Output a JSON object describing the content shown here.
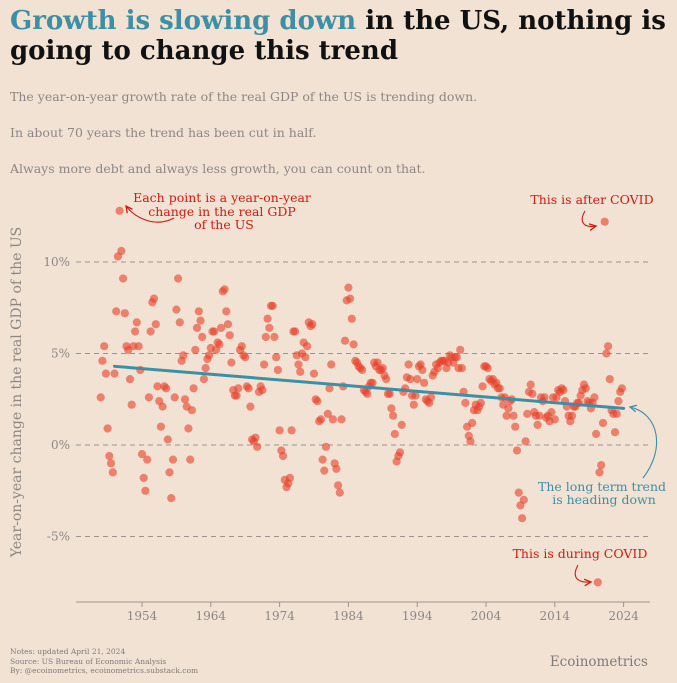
{
  "title": {
    "highlight": "Growth is slowing down",
    "rest": " in the US, nothing is going to change this trend"
  },
  "subtitles": [
    "The year-on-year growth rate of the real GDP of the US is trending down.",
    "In about 70 years the trend has been cut in half.",
    "Always more debt and always less growth, you can count on that."
  ],
  "notes": [
    "Notes: updated April 21, 2024",
    "Source: US Bureau of Economic Analysis",
    "By: @ecoinometrics, ecoinometrics.substack.com"
  ],
  "brand": "Ecoinometrics",
  "colors": {
    "background": "#f2e2d3",
    "points": "#e8402a",
    "trend": "#3d8fa6",
    "annotation_red": "#cc1a14",
    "annotation_blue": "#3d8fa6"
  },
  "annotations": {
    "points": [
      "Each point is a year-on-year",
      "change in the real GDP",
      "of the US"
    ],
    "after_covid": "This is after COVID",
    "trend": [
      "The long term trend",
      "is heading down"
    ],
    "during_covid": "This is during COVID"
  },
  "chart_data": {
    "type": "scatter",
    "ylabel": "Year-on-year change in the real GDP of the US",
    "xlabel": "",
    "x_ticks": [
      "1954",
      "1964",
      "1974",
      "1984",
      "1994",
      "2004",
      "2014",
      "2024"
    ],
    "y_ticks": [
      "10%",
      "5%",
      "0%",
      "-5%"
    ],
    "xlim": [
      1947,
      2026
    ],
    "ylim": [
      -8.2,
      11.5
    ],
    "grid": "horizontal dashed at -5, 0, 5, 10",
    "trend_line": {
      "x": [
        1950,
        2024
      ],
      "y": [
        4.3,
        2.0
      ]
    },
    "points": [
      [
        1948.0,
        2.6
      ],
      [
        1948.25,
        4.6
      ],
      [
        1948.5,
        5.4
      ],
      [
        1948.75,
        3.9
      ],
      [
        1949.0,
        0.9
      ],
      [
        1949.25,
        -0.6
      ],
      [
        1949.5,
        -1.0
      ],
      [
        1949.75,
        -1.5
      ],
      [
        1950.0,
        3.9
      ],
      [
        1950.25,
        7.3
      ],
      [
        1950.5,
        10.3
      ],
      [
        1950.75,
        12.8
      ],
      [
        1951.0,
        10.6
      ],
      [
        1951.25,
        9.1
      ],
      [
        1951.5,
        7.2
      ],
      [
        1951.75,
        5.4
      ],
      [
        1952.0,
        5.2
      ],
      [
        1952.25,
        3.6
      ],
      [
        1952.5,
        2.2
      ],
      [
        1952.75,
        5.4
      ],
      [
        1953.0,
        6.2
      ],
      [
        1953.25,
        6.7
      ],
      [
        1953.5,
        5.4
      ],
      [
        1953.75,
        4.1
      ],
      [
        1954.0,
        -0.5
      ],
      [
        1954.25,
        -1.8
      ],
      [
        1954.5,
        -2.5
      ],
      [
        1954.75,
        -0.8
      ],
      [
        1955.0,
        2.6
      ],
      [
        1955.25,
        6.2
      ],
      [
        1955.5,
        7.8
      ],
      [
        1955.75,
        8.0
      ],
      [
        1956.0,
        6.6
      ],
      [
        1956.25,
        3.2
      ],
      [
        1956.5,
        2.4
      ],
      [
        1956.75,
        1.0
      ],
      [
        1957.0,
        2.1
      ],
      [
        1957.25,
        3.2
      ],
      [
        1957.5,
        3.1
      ],
      [
        1957.75,
        0.3
      ],
      [
        1958.0,
        -1.5
      ],
      [
        1958.25,
        -2.9
      ],
      [
        1958.5,
        -0.8
      ],
      [
        1958.75,
        2.6
      ],
      [
        1959.0,
        7.4
      ],
      [
        1959.25,
        9.1
      ],
      [
        1959.5,
        6.7
      ],
      [
        1959.75,
        4.6
      ],
      [
        1960.0,
        4.9
      ],
      [
        1960.25,
        2.5
      ],
      [
        1960.5,
        2.1
      ],
      [
        1960.75,
        0.9
      ],
      [
        1961.0,
        -0.8
      ],
      [
        1961.25,
        1.9
      ],
      [
        1961.5,
        3.1
      ],
      [
        1961.75,
        5.2
      ],
      [
        1962.0,
        6.4
      ],
      [
        1962.25,
        7.3
      ],
      [
        1962.5,
        6.8
      ],
      [
        1962.75,
        5.9
      ],
      [
        1963.0,
        3.6
      ],
      [
        1963.25,
        4.2
      ],
      [
        1963.5,
        4.7
      ],
      [
        1963.75,
        4.9
      ],
      [
        1964.0,
        5.3
      ],
      [
        1964.25,
        6.2
      ],
      [
        1964.5,
        6.2
      ],
      [
        1964.75,
        5.2
      ],
      [
        1965.0,
        5.6
      ],
      [
        1965.25,
        5.5
      ],
      [
        1965.5,
        6.4
      ],
      [
        1965.75,
        8.4
      ],
      [
        1966.0,
        8.5
      ],
      [
        1966.25,
        7.3
      ],
      [
        1966.5,
        6.6
      ],
      [
        1966.75,
        6.0
      ],
      [
        1967.0,
        4.5
      ],
      [
        1967.25,
        3.0
      ],
      [
        1967.5,
        2.7
      ],
      [
        1967.75,
        2.7
      ],
      [
        1968.0,
        3.1
      ],
      [
        1968.25,
        5.2
      ],
      [
        1968.5,
        5.4
      ],
      [
        1968.75,
        4.9
      ],
      [
        1969.0,
        4.8
      ],
      [
        1969.25,
        3.2
      ],
      [
        1969.5,
        3.1
      ],
      [
        1969.75,
        2.1
      ],
      [
        1970.0,
        0.3
      ],
      [
        1970.25,
        0.2
      ],
      [
        1970.5,
        0.4
      ],
      [
        1970.75,
        -0.1
      ],
      [
        1971.0,
        2.9
      ],
      [
        1971.25,
        3.2
      ],
      [
        1971.5,
        3.0
      ],
      [
        1971.75,
        4.4
      ],
      [
        1972.0,
        5.9
      ],
      [
        1972.25,
        6.9
      ],
      [
        1972.5,
        6.4
      ],
      [
        1972.75,
        7.6
      ],
      [
        1973.0,
        7.6
      ],
      [
        1973.25,
        5.9
      ],
      [
        1973.5,
        4.8
      ],
      [
        1973.75,
        4.1
      ],
      [
        1974.0,
        0.8
      ],
      [
        1974.25,
        -0.3
      ],
      [
        1974.5,
        -0.6
      ],
      [
        1974.75,
        -1.9
      ],
      [
        1975.0,
        -2.3
      ],
      [
        1975.25,
        -2.1
      ],
      [
        1975.5,
        -1.8
      ],
      [
        1975.75,
        0.8
      ],
      [
        1976.0,
        6.2
      ],
      [
        1976.25,
        6.2
      ],
      [
        1976.5,
        4.9
      ],
      [
        1976.75,
        4.4
      ],
      [
        1977.0,
        4.0
      ],
      [
        1977.25,
        5.0
      ],
      [
        1977.5,
        5.6
      ],
      [
        1977.75,
        4.8
      ],
      [
        1978.0,
        5.4
      ],
      [
        1978.25,
        6.7
      ],
      [
        1978.5,
        6.5
      ],
      [
        1978.75,
        6.6
      ],
      [
        1979.0,
        3.9
      ],
      [
        1979.25,
        2.5
      ],
      [
        1979.5,
        2.4
      ],
      [
        1979.75,
        1.3
      ],
      [
        1980.0,
        1.4
      ],
      [
        1980.25,
        -0.8
      ],
      [
        1980.5,
        -1.4
      ],
      [
        1980.75,
        -0.1
      ],
      [
        1981.0,
        1.7
      ],
      [
        1981.25,
        3.1
      ],
      [
        1981.5,
        4.4
      ],
      [
        1981.75,
        1.4
      ],
      [
        1982.0,
        -1.0
      ],
      [
        1982.25,
        -1.3
      ],
      [
        1982.5,
        -2.2
      ],
      [
        1982.75,
        -2.6
      ],
      [
        1983.0,
        1.4
      ],
      [
        1983.25,
        3.2
      ],
      [
        1983.5,
        5.7
      ],
      [
        1983.75,
        7.9
      ],
      [
        1984.0,
        8.6
      ],
      [
        1984.25,
        8.0
      ],
      [
        1984.5,
        6.9
      ],
      [
        1984.75,
        5.5
      ],
      [
        1985.0,
        4.6
      ],
      [
        1985.25,
        4.5
      ],
      [
        1985.5,
        4.3
      ],
      [
        1985.75,
        4.2
      ],
      [
        1986.0,
        4.1
      ],
      [
        1986.25,
        3.0
      ],
      [
        1986.5,
        2.9
      ],
      [
        1986.75,
        2.8
      ],
      [
        1987.0,
        3.2
      ],
      [
        1987.25,
        3.4
      ],
      [
        1987.5,
        3.4
      ],
      [
        1987.75,
        4.5
      ],
      [
        1988.0,
        4.3
      ],
      [
        1988.25,
        4.5
      ],
      [
        1988.5,
        4.1
      ],
      [
        1988.75,
        4.1
      ],
      [
        1989.0,
        4.2
      ],
      [
        1989.25,
        3.8
      ],
      [
        1989.5,
        3.6
      ],
      [
        1989.75,
        2.8
      ],
      [
        1990.0,
        2.8
      ],
      [
        1990.25,
        2.0
      ],
      [
        1990.5,
        1.6
      ],
      [
        1990.75,
        0.6
      ],
      [
        1991.0,
        -0.9
      ],
      [
        1991.25,
        -0.6
      ],
      [
        1991.5,
        -0.4
      ],
      [
        1991.75,
        1.1
      ],
      [
        1992.0,
        2.9
      ],
      [
        1992.25,
        3.1
      ],
      [
        1992.5,
        3.7
      ],
      [
        1992.75,
        4.4
      ],
      [
        1993.0,
        3.6
      ],
      [
        1993.25,
        2.7
      ],
      [
        1993.5,
        2.2
      ],
      [
        1993.75,
        2.7
      ],
      [
        1994.0,
        3.6
      ],
      [
        1994.25,
        4.3
      ],
      [
        1994.5,
        4.4
      ],
      [
        1994.75,
        4.1
      ],
      [
        1995.0,
        3.4
      ],
      [
        1995.25,
        2.5
      ],
      [
        1995.5,
        2.4
      ],
      [
        1995.75,
        2.3
      ],
      [
        1996.0,
        2.6
      ],
      [
        1996.25,
        3.8
      ],
      [
        1996.5,
        4.0
      ],
      [
        1996.75,
        4.4
      ],
      [
        1997.0,
        4.2
      ],
      [
        1997.25,
        4.5
      ],
      [
        1997.5,
        4.6
      ],
      [
        1997.75,
        4.6
      ],
      [
        1998.0,
        4.6
      ],
      [
        1998.25,
        4.2
      ],
      [
        1998.5,
        4.5
      ],
      [
        1998.75,
        4.9
      ],
      [
        1999.0,
        4.8
      ],
      [
        1999.25,
        4.5
      ],
      [
        1999.5,
        4.8
      ],
      [
        1999.75,
        4.8
      ],
      [
        2000.0,
        4.2
      ],
      [
        2000.25,
        5.2
      ],
      [
        2000.5,
        4.2
      ],
      [
        2000.75,
        2.9
      ],
      [
        2001.0,
        2.3
      ],
      [
        2001.25,
        1.0
      ],
      [
        2001.5,
        0.5
      ],
      [
        2001.75,
        0.2
      ],
      [
        2002.0,
        1.2
      ],
      [
        2002.25,
        1.9
      ],
      [
        2002.5,
        2.2
      ],
      [
        2002.75,
        1.9
      ],
      [
        2003.0,
        2.1
      ],
      [
        2003.25,
        2.3
      ],
      [
        2003.5,
        3.2
      ],
      [
        2003.75,
        4.3
      ],
      [
        2004.0,
        4.3
      ],
      [
        2004.25,
        4.2
      ],
      [
        2004.5,
        3.6
      ],
      [
        2004.75,
        3.5
      ],
      [
        2005.0,
        3.6
      ],
      [
        2005.25,
        3.3
      ],
      [
        2005.5,
        3.4
      ],
      [
        2005.75,
        3.1
      ],
      [
        2006.0,
        3.1
      ],
      [
        2006.25,
        2.6
      ],
      [
        2006.5,
        2.2
      ],
      [
        2006.75,
        2.6
      ],
      [
        2007.0,
        1.6
      ],
      [
        2007.25,
        2.0
      ],
      [
        2007.5,
        2.4
      ],
      [
        2007.75,
        2.5
      ],
      [
        2008.0,
        1.6
      ],
      [
        2008.25,
        1.0
      ],
      [
        2008.5,
        -0.3
      ],
      [
        2008.75,
        -2.6
      ],
      [
        2009.0,
        -3.3
      ],
      [
        2009.25,
        -4.0
      ],
      [
        2009.5,
        -3.0
      ],
      [
        2009.75,
        0.2
      ],
      [
        2010.0,
        1.7
      ],
      [
        2010.25,
        2.9
      ],
      [
        2010.5,
        3.3
      ],
      [
        2010.75,
        2.8
      ],
      [
        2011.0,
        1.8
      ],
      [
        2011.25,
        1.6
      ],
      [
        2011.5,
        1.1
      ],
      [
        2011.75,
        1.6
      ],
      [
        2012.0,
        2.6
      ],
      [
        2012.25,
        2.4
      ],
      [
        2012.5,
        2.6
      ],
      [
        2012.75,
        1.5
      ],
      [
        2013.0,
        1.6
      ],
      [
        2013.25,
        1.3
      ],
      [
        2013.5,
        1.8
      ],
      [
        2013.75,
        2.6
      ],
      [
        2014.0,
        1.4
      ],
      [
        2014.25,
        2.6
      ],
      [
        2014.5,
        3.0
      ],
      [
        2014.75,
        2.9
      ],
      [
        2015.0,
        3.1
      ],
      [
        2015.25,
        3.0
      ],
      [
        2015.5,
        2.4
      ],
      [
        2015.75,
        2.1
      ],
      [
        2016.0,
        1.6
      ],
      [
        2016.25,
        1.3
      ],
      [
        2016.5,
        1.6
      ],
      [
        2016.75,
        2.1
      ],
      [
        2017.0,
        2.1
      ],
      [
        2017.25,
        2.3
      ],
      [
        2017.5,
        2.3
      ],
      [
        2017.75,
        2.7
      ],
      [
        2018.0,
        3.0
      ],
      [
        2018.25,
        3.3
      ],
      [
        2018.5,
        3.1
      ],
      [
        2018.75,
        2.4
      ],
      [
        2019.0,
        2.3
      ],
      [
        2019.25,
        2.0
      ],
      [
        2019.5,
        2.3
      ],
      [
        2019.75,
        2.6
      ],
      [
        2020.0,
        0.6
      ],
      [
        2020.25,
        -7.5
      ],
      [
        2020.5,
        -1.5
      ],
      [
        2020.75,
        -1.1
      ],
      [
        2021.0,
        1.2
      ],
      [
        2021.25,
        12.2
      ],
      [
        2021.5,
        5.0
      ],
      [
        2021.75,
        5.4
      ],
      [
        2022.0,
        3.6
      ],
      [
        2022.25,
        1.9
      ],
      [
        2022.5,
        1.7
      ],
      [
        2022.75,
        0.7
      ],
      [
        2023.0,
        1.7
      ],
      [
        2023.25,
        2.4
      ],
      [
        2023.5,
        2.9
      ],
      [
        2023.75,
        3.1
      ]
    ]
  }
}
